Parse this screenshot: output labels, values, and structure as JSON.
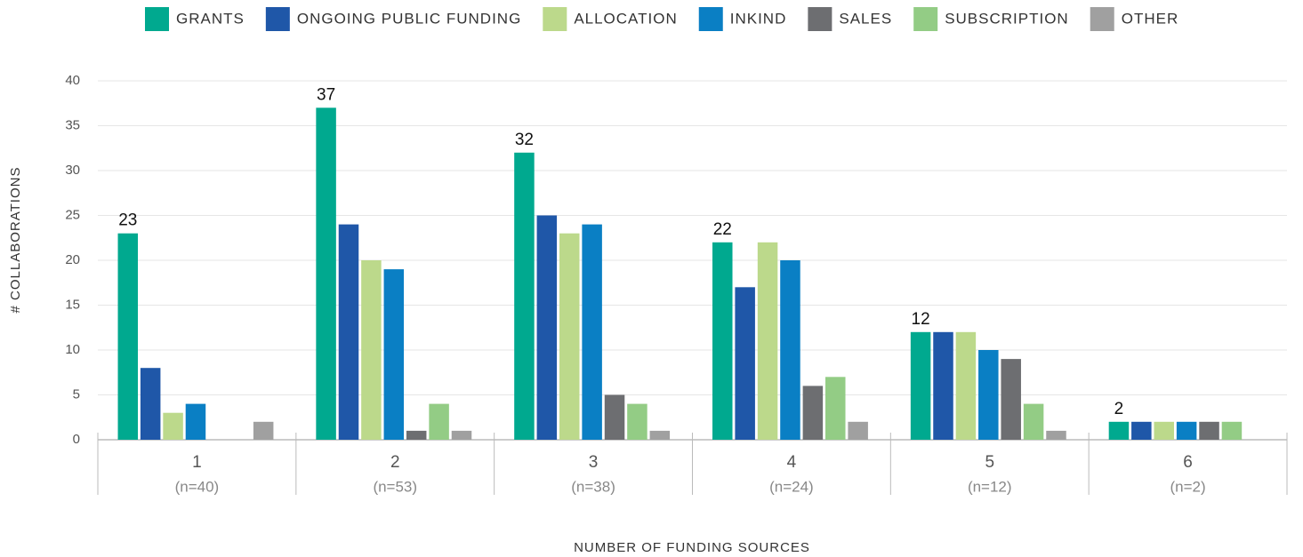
{
  "chart_data": {
    "type": "bar",
    "y_label": "# COLLABORATIONS",
    "x_label": "NUMBER OF FUNDING SOURCES",
    "categories": [
      "1",
      "2",
      "3",
      "4",
      "5",
      "6"
    ],
    "category_notes": [
      "(n=40)",
      "(n=53)",
      "(n=38)",
      "(n=24)",
      "(n=12)",
      "(n=2)"
    ],
    "series": [
      {
        "name": "GRANTS",
        "color": "#00a98f",
        "values": [
          23,
          37,
          32,
          22,
          12,
          2
        ],
        "show_labels": true
      },
      {
        "name": "ONGOING PUBLIC FUNDING",
        "color": "#1f57a8",
        "values": [
          8,
          24,
          25,
          17,
          12,
          2
        ]
      },
      {
        "name": "ALLOCATION",
        "color": "#bcd98b",
        "values": [
          3,
          20,
          23,
          22,
          12,
          2
        ]
      },
      {
        "name": "INKIND",
        "color": "#0a7fc4",
        "values": [
          4,
          19,
          24,
          20,
          10,
          2
        ]
      },
      {
        "name": "SALES",
        "color": "#6d6e71",
        "values": [
          0,
          1,
          5,
          6,
          9,
          2
        ]
      },
      {
        "name": "SUBSCRIPTION",
        "color": "#93cc85",
        "values": [
          0,
          4,
          4,
          7,
          4,
          2
        ]
      },
      {
        "name": "OTHER",
        "color": "#a0a0a0",
        "values": [
          2,
          1,
          1,
          2,
          1,
          0
        ]
      }
    ],
    "ylim": [
      0,
      40
    ],
    "yticks": [
      0,
      5,
      10,
      15,
      20,
      25,
      30,
      35,
      40
    ],
    "grid": true,
    "legend": "top"
  }
}
